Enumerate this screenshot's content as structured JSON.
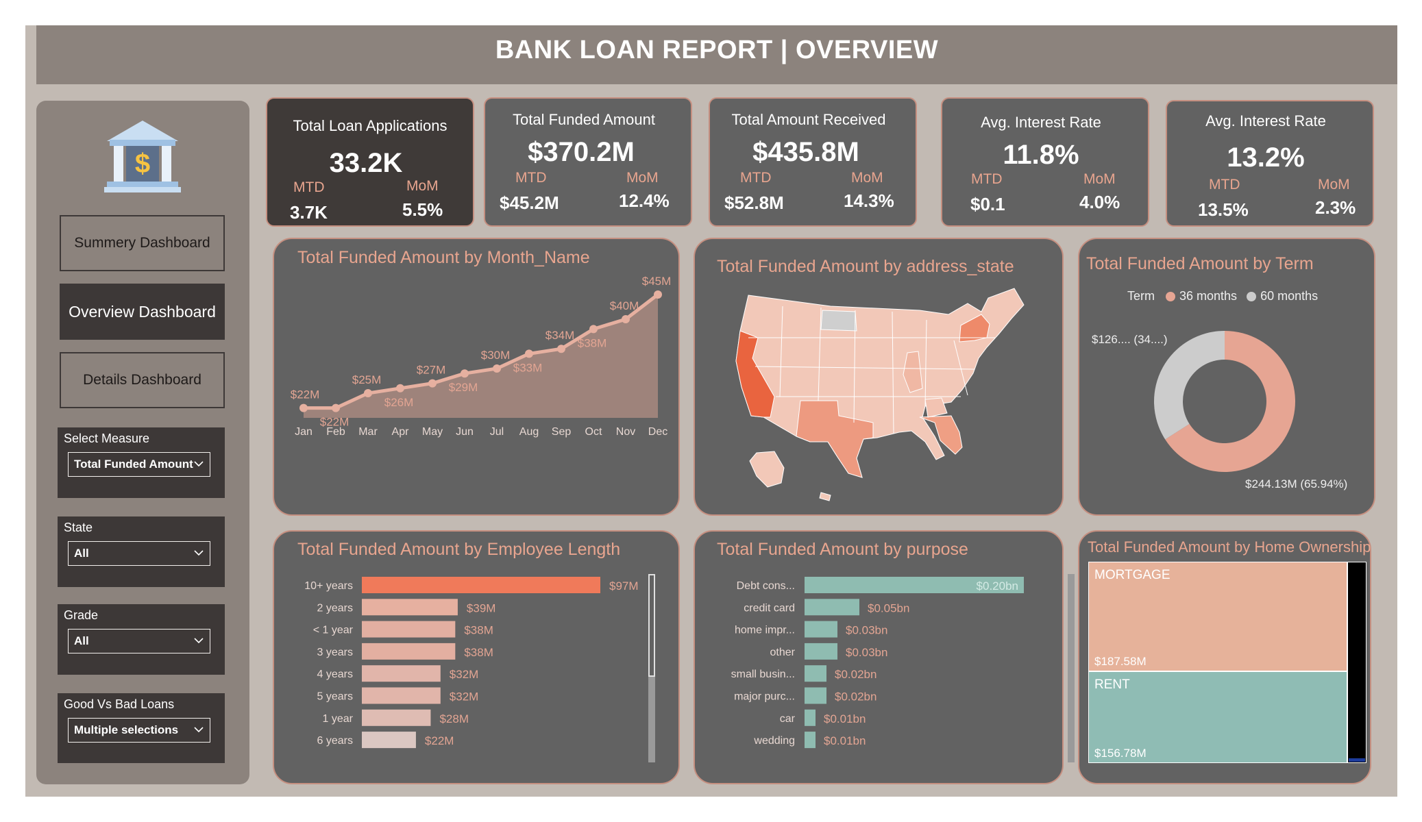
{
  "header": {
    "title": "BANK LOAN REPORT | OVERVIEW"
  },
  "sidebar": {
    "nav": [
      {
        "label": "Summery Dashboard",
        "active": false
      },
      {
        "label": "Overview Dashboard",
        "active": true
      },
      {
        "label": "Details Dashboard",
        "active": false
      }
    ],
    "slicers": [
      {
        "label": "Select Measure",
        "value": "Total Funded Amount"
      },
      {
        "label": "State",
        "value": "All"
      },
      {
        "label": "Grade",
        "value": "All"
      },
      {
        "label": "Good Vs Bad Loans",
        "value": "Multiple selections"
      }
    ]
  },
  "kpis": [
    {
      "title": "Total Loan Applications",
      "value": "33.2K",
      "mtd_label": "MTD",
      "mtd": "3.7K",
      "mom_label": "MoM",
      "mom": "5.5%"
    },
    {
      "title": "Total Funded Amount",
      "value": "$370.2M",
      "mtd_label": "MTD",
      "mtd": "$45.2M",
      "mom_label": "MoM",
      "mom": "12.4%"
    },
    {
      "title": "Total Amount Received",
      "value": "$435.8M",
      "mtd_label": "MTD",
      "mtd": "$52.8M",
      "mom_label": "MoM",
      "mom": "14.3%"
    },
    {
      "title": "Avg. Interest Rate",
      "value": "11.8%",
      "mtd_label": "MTD",
      "mtd": "$0.1",
      "mom_label": "MoM",
      "mom": "4.0%"
    },
    {
      "title": "Avg. Interest Rate",
      "value": "13.2%",
      "mtd_label": "MTD",
      "mtd": "13.5%",
      "mom_label": "MoM",
      "mom": "2.3%"
    }
  ],
  "panels": {
    "month": {
      "title": "Total Funded Amount by Month_Name"
    },
    "state": {
      "title": "Total Funded Amount by address_state"
    },
    "term": {
      "title": "Total Funded Amount by Term",
      "legend_title": "Term",
      "legend": [
        "36 months",
        "60 months"
      ],
      "label_60": "$126.... (34....)",
      "label_36": "$244.13M (65.94%)"
    },
    "emp": {
      "title": "Total Funded Amount by Employee Length"
    },
    "purpose": {
      "title": "Total Funded Amount by purpose"
    },
    "home": {
      "title": "Total Funded Amount by Home Ownership",
      "mortgage_label": "MORTGAGE",
      "mortgage_value": "$187.58M",
      "rent_label": "RENT",
      "rent_value": "$156.78M"
    }
  },
  "colors": {
    "accent": "#e8a58f",
    "line": "#e6b0a0",
    "area": "#9e837b",
    "highlight": "#f07a5a",
    "teal": "#8fbcb1",
    "grey": "#cccccc",
    "card": "#626262"
  },
  "chart_data": [
    {
      "type": "area",
      "title": "Total Funded Amount by Month_Name",
      "categories": [
        "Jan",
        "Feb",
        "Mar",
        "Apr",
        "May",
        "Jun",
        "Jul",
        "Aug",
        "Sep",
        "Oct",
        "Nov",
        "Dec"
      ],
      "values": [
        22,
        22,
        25,
        26,
        27,
        29,
        30,
        33,
        34,
        38,
        40,
        45
      ],
      "labels": [
        "$22M",
        "$22M",
        "$25M",
        "$26M",
        "$27M",
        "$29M",
        "$30M",
        "$33M",
        "$34M",
        "$38M",
        "$40M",
        "$45M"
      ],
      "unit": "$M"
    },
    {
      "type": "pie",
      "title": "Total Funded Amount by Term",
      "categories": [
        "36 months",
        "60 months"
      ],
      "values": [
        244.13,
        126.07
      ],
      "percent": [
        65.94,
        34.06
      ]
    },
    {
      "type": "bar",
      "title": "Total Funded Amount by Employee Length",
      "categories": [
        "10+ years",
        "2 years",
        "< 1 year",
        "3 years",
        "4 years",
        "5 years",
        "1 year",
        "6 years"
      ],
      "values": [
        97,
        39,
        38,
        38,
        32,
        32,
        28,
        22
      ],
      "labels": [
        "$97M",
        "$39M",
        "$38M",
        "$38M",
        "$32M",
        "$32M",
        "$28M",
        "$22M"
      ]
    },
    {
      "type": "bar",
      "title": "Total Funded Amount by purpose",
      "categories": [
        "Debt cons...",
        "credit card",
        "home impr...",
        "other",
        "small busin...",
        "major purc...",
        "car",
        "wedding"
      ],
      "values": [
        0.2,
        0.05,
        0.03,
        0.03,
        0.02,
        0.02,
        0.01,
        0.01
      ],
      "labels": [
        "$0.20bn",
        "$0.05bn",
        "$0.03bn",
        "$0.03bn",
        "$0.02bn",
        "$0.02bn",
        "$0.01bn",
        "$0.01bn"
      ]
    },
    {
      "type": "heatmap",
      "title": "Total Funded Amount by Home Ownership",
      "categories": [
        "MORTGAGE",
        "RENT"
      ],
      "values": [
        187.58,
        156.78
      ]
    }
  ]
}
